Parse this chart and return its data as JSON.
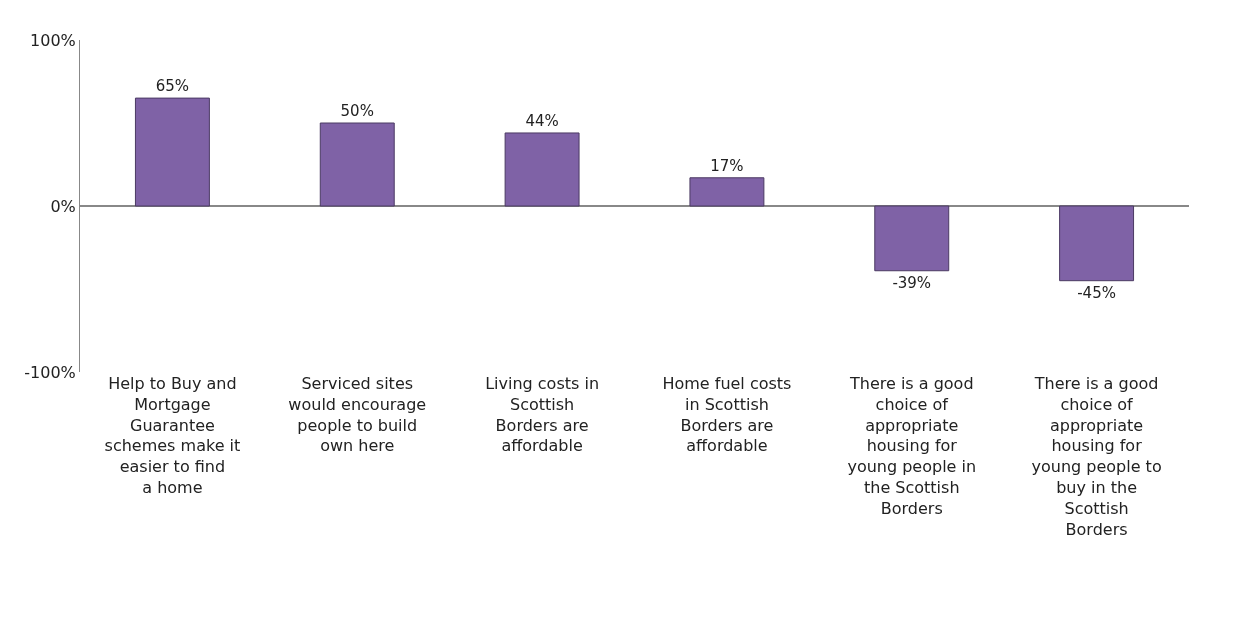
{
  "chart_data": {
    "type": "bar",
    "categories": [
      "Help to Buy and Mortgage Guarantee schemes make it easier to find a home",
      "Serviced sites would encourage people to build own here",
      "Living costs in Scottish Borders are affordable",
      "Home fuel costs in Scottish Borders are affordable",
      "There is a good choice of appropriate housing for young people in the Scottish Borders",
      "There is a good choice of appropriate housing for young people to buy in the Scottish Borders"
    ],
    "values": [
      65,
      50,
      44,
      17,
      -39,
      -45
    ],
    "value_labels": [
      "65%",
      "50%",
      "44%",
      "17%",
      "-39%",
      "-45%"
    ],
    "color": "#7f62a6",
    "ylim": [
      -100,
      100
    ],
    "yticks": [
      {
        "value": -100,
        "label": "-100%"
      },
      {
        "value": 0,
        "label": "0%"
      },
      {
        "value": 100,
        "label": "100%"
      }
    ],
    "grid": "y",
    "legend": false
  }
}
